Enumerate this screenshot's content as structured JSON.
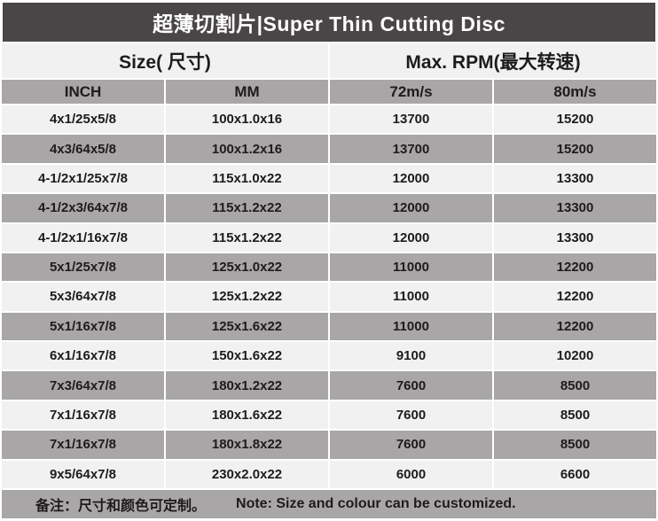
{
  "title": {
    "zh": "超薄切割片",
    "en": "Super Thin Cutting Disc",
    "text": "超薄切割片|Super Thin Cutting Disc"
  },
  "colors": {
    "title_bar_bg": "#4a4647",
    "title_text": "#ffffff",
    "row_gray": "#a8a6a7",
    "row_light": "#f2f1f1",
    "text": "#1d1b1c"
  },
  "table": {
    "group_headers": {
      "size": "Size( 尺寸)",
      "rpm": "Max. RPM(最大转速)"
    },
    "columns": [
      "INCH",
      "MM",
      "72m/s",
      "80m/s"
    ],
    "column_keys": [
      "inch",
      "mm",
      "rpm72",
      "rpm80"
    ],
    "rows": [
      [
        "4x1/25x5/8",
        "100x1.0x16",
        "13700",
        "15200"
      ],
      [
        "4x3/64x5/8",
        "100x1.2x16",
        "13700",
        "15200"
      ],
      [
        "4-1/2x1/25x7/8",
        "115x1.0x22",
        "12000",
        "13300"
      ],
      [
        "4-1/2x3/64x7/8",
        "115x1.2x22",
        "12000",
        "13300"
      ],
      [
        "4-1/2x1/16x7/8",
        "115x1.2x22",
        "12000",
        "13300"
      ],
      [
        "5x1/25x7/8",
        "125x1.0x22",
        "11000",
        "12200"
      ],
      [
        "5x3/64x7/8",
        "125x1.2x22",
        "11000",
        "12200"
      ],
      [
        "5x1/16x7/8",
        "125x1.6x22",
        "11000",
        "12200"
      ],
      [
        "6x1/16x7/8",
        "150x1.6x22",
        "9100",
        "10200"
      ],
      [
        "7x3/64x7/8",
        "180x1.2x22",
        "7600",
        "8500"
      ],
      [
        "7x1/16x7/8",
        "180x1.6x22",
        "7600",
        "8500"
      ],
      [
        "7x1/16x7/8",
        "180x1.8x22",
        "7600",
        "8500"
      ],
      [
        "9x5/64x7/8",
        "230x2.0x22",
        "6000",
        "6600"
      ]
    ]
  },
  "note": {
    "zh": "备注：尺寸和颜色可定制。",
    "en": "Note: Size and colour can be customized."
  }
}
